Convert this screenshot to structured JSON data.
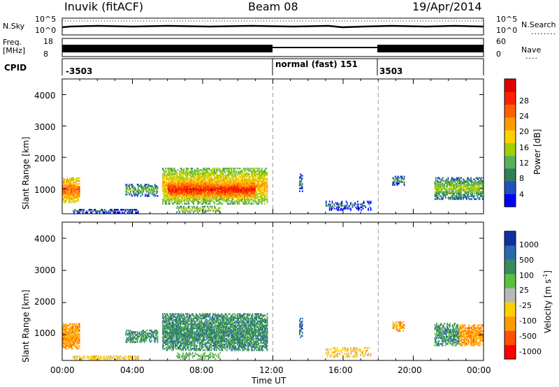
{
  "header": {
    "station": "Inuvik (fitACF)",
    "beam": "Beam 08",
    "date": "19/Apr/2014"
  },
  "strip_labels": {
    "nsky": "N.Sky",
    "nsky_ticks": [
      "10^5",
      "10^0"
    ],
    "nsearch": "N.Search",
    "nsearch_ticks": [
      "10^5",
      "10^0"
    ],
    "freq_line1": "Freq.",
    "freq_line2": "[MHz]",
    "freq_ticks": [
      "18",
      "8"
    ],
    "nave": "Nave",
    "nave_ticks": [
      "60",
      "0"
    ],
    "cpid": "CPID"
  },
  "cpid_segments": [
    {
      "label": "-3503",
      "start_hour": 0,
      "end_hour": 12
    },
    {
      "label": "normal (fast) 151",
      "start_hour": 12,
      "end_hour": 18
    },
    {
      "label": "3503",
      "start_hour": 18,
      "end_hour": 24
    }
  ],
  "colors": {
    "power": [
      "#0000ff",
      "#2050c0",
      "#2f7f5a",
      "#5ab05a",
      "#a0d000",
      "#ffd000",
      "#ff9a00",
      "#ff6000",
      "#ff2000",
      "#e00000"
    ],
    "velocity": [
      "#1030a0",
      "#2a6ab0",
      "#3a8a60",
      "#5ac040",
      "#b8b8b8",
      "#ffd000",
      "#ff9a00",
      "#ff5000",
      "#ff0000"
    ],
    "gridline": "#a0a0a0"
  },
  "chart_data": [
    {
      "type": "heatmap",
      "name": "power",
      "ylabel": "Slant Range [km]",
      "xlabel": "",
      "xlim_hours": [
        0,
        24
      ],
      "ylim": [
        200,
        4500
      ],
      "yticks": [
        "4000",
        "3000",
        "2000",
        "1000"
      ],
      "ytick_values": [
        4000,
        3000,
        2000,
        1000
      ],
      "colorbar_label": "Power [dB]",
      "colorbar_ticks": [
        "28",
        "24",
        "20",
        "16",
        "12",
        "8",
        "4"
      ],
      "colorbar_range": [
        0,
        30
      ],
      "regions": [
        {
          "t0": 0.0,
          "t1": 1.0,
          "r0": 550,
          "r1": 1350,
          "level": 24,
          "density": 0.9
        },
        {
          "t0": 0.6,
          "t1": 4.3,
          "r0": 220,
          "r1": 320,
          "level": 8,
          "density": 0.7
        },
        {
          "t0": 3.6,
          "t1": 5.4,
          "r0": 750,
          "r1": 1150,
          "level": 12,
          "density": 0.6
        },
        {
          "t0": 5.7,
          "t1": 11.7,
          "r0": 500,
          "r1": 1650,
          "level": 20,
          "density": 0.85
        },
        {
          "t0": 6.0,
          "t1": 11.0,
          "r0": 700,
          "r1": 1200,
          "level": 28,
          "density": 0.9
        },
        {
          "t0": 6.5,
          "t1": 9.0,
          "r0": 230,
          "r1": 420,
          "level": 16,
          "density": 0.6
        },
        {
          "t0": 13.5,
          "t1": 13.7,
          "r0": 900,
          "r1": 1500,
          "level": 8,
          "density": 0.6
        },
        {
          "t0": 15.0,
          "t1": 17.6,
          "r0": 300,
          "r1": 600,
          "level": 6,
          "density": 0.4
        },
        {
          "t0": 18.8,
          "t1": 19.5,
          "r0": 1100,
          "r1": 1400,
          "level": 10,
          "density": 0.6
        },
        {
          "t0": 21.2,
          "t1": 24.0,
          "r0": 650,
          "r1": 1350,
          "level": 14,
          "density": 0.8
        }
      ]
    },
    {
      "type": "heatmap",
      "name": "velocity",
      "ylabel": "Slant Range [km]",
      "xlabel": "Time UT",
      "xlim_hours": [
        0,
        24
      ],
      "ylim": [
        200,
        4500
      ],
      "yticks": [
        "4000",
        "3000",
        "2000",
        "1000"
      ],
      "ytick_values": [
        4000,
        3000,
        2000,
        1000
      ],
      "xticks": [
        "00:00",
        "04:00",
        "08:00",
        "12:00",
        "16:00",
        "20:00",
        "00:00"
      ],
      "xtick_hours": [
        0,
        4,
        8,
        12,
        16,
        20,
        24
      ],
      "colorbar_label": "Velocity [m s",
      "colorbar_unit_exp": "-1",
      "colorbar_ticks": [
        "1000",
        "500",
        "100",
        "25",
        "-25",
        "-100",
        "-500",
        "-1000"
      ],
      "regions": [
        {
          "t0": 0.0,
          "t1": 1.0,
          "r0": 550,
          "r1": 1350,
          "vbin": 6,
          "density": 0.9
        },
        {
          "t0": 0.6,
          "t1": 4.3,
          "r0": 220,
          "r1": 320,
          "vbin": 5,
          "density": 0.6
        },
        {
          "t0": 3.6,
          "t1": 5.4,
          "r0": 750,
          "r1": 1150,
          "vbin": 2,
          "density": 0.6
        },
        {
          "t0": 5.7,
          "t1": 11.7,
          "r0": 500,
          "r1": 1650,
          "vbin": 2,
          "density": 0.85
        },
        {
          "t0": 6.5,
          "t1": 9.0,
          "r0": 230,
          "r1": 420,
          "vbin": 3,
          "density": 0.5
        },
        {
          "t0": 13.5,
          "t1": 13.7,
          "r0": 900,
          "r1": 1500,
          "vbin": 1,
          "density": 0.6
        },
        {
          "t0": 15.0,
          "t1": 17.6,
          "r0": 300,
          "r1": 600,
          "vbin": 5,
          "density": 0.4
        },
        {
          "t0": 18.8,
          "t1": 19.5,
          "r0": 1100,
          "r1": 1400,
          "vbin": 6,
          "density": 0.6
        },
        {
          "t0": 21.2,
          "t1": 22.6,
          "r0": 650,
          "r1": 1350,
          "vbin": 2,
          "density": 0.7
        },
        {
          "t0": 22.6,
          "t1": 24.0,
          "r0": 650,
          "r1": 1300,
          "vbin": 6,
          "density": 0.8
        }
      ]
    }
  ]
}
